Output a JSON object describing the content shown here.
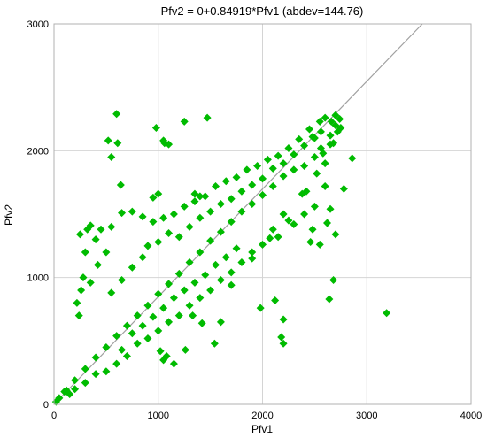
{
  "chart_data": {
    "type": "scatter",
    "title": "Pfv2 = 0+0.84919*Pfv1 (abdev=144.76)",
    "xlabel": "Pfv1",
    "ylabel": "Pfv2",
    "xlim": [
      0,
      4000
    ],
    "ylim": [
      0,
      3000
    ],
    "xticks": [
      "0",
      "1000",
      "2000",
      "3000",
      "4000"
    ],
    "yticks": [
      "0",
      "1000",
      "2000",
      "3000"
    ],
    "grid": true,
    "fit_line": {
      "intercept": 0,
      "slope": 0.84919,
      "color": "#a0a0a0"
    },
    "marker": {
      "shape": "diamond",
      "color": "#00bb00"
    },
    "series": [
      {
        "values": [
          [
            600,
            2290
          ],
          [
            520,
            2080
          ],
          [
            610,
            2060
          ],
          [
            550,
            1950
          ],
          [
            640,
            1730
          ],
          [
            980,
            2180
          ],
          [
            1060,
            2060
          ],
          [
            1470,
            2260
          ],
          [
            1100,
            2050
          ],
          [
            1050,
            2080
          ],
          [
            1250,
            2230
          ],
          [
            1000,
            1660
          ],
          [
            950,
            1630
          ],
          [
            1350,
            1660
          ],
          [
            1400,
            1640
          ],
          [
            2680,
            980
          ],
          [
            2780,
            1700
          ],
          [
            2640,
            830
          ],
          [
            3190,
            720
          ],
          [
            2860,
            1940
          ],
          [
            2700,
            1340
          ],
          [
            2460,
            1280
          ],
          [
            2620,
            1430
          ],
          [
            2120,
            820
          ],
          [
            2200,
            670
          ],
          [
            2180,
            530
          ],
          [
            2200,
            480
          ],
          [
            1980,
            760
          ],
          [
            1600,
            650
          ],
          [
            1540,
            480
          ],
          [
            1080,
            380
          ],
          [
            1050,
            350
          ],
          [
            1020,
            420
          ],
          [
            1150,
            320
          ],
          [
            1420,
            640
          ],
          [
            1260,
            430
          ],
          [
            1330,
            700
          ],
          [
            1700,
            940
          ],
          [
            1900,
            1150
          ],
          [
            2070,
            1310
          ],
          [
            2250,
            1450
          ],
          [
            2420,
            1680
          ],
          [
            2150,
            1320
          ],
          [
            2380,
            1660
          ],
          [
            2520,
            1820
          ],
          [
            2600,
            1900
          ],
          [
            2680,
            2060
          ],
          [
            2720,
            2150
          ],
          [
            2740,
            2250
          ],
          [
            2700,
            2200
          ],
          [
            2650,
            2120
          ],
          [
            2560,
            2020
          ],
          [
            2500,
            1950
          ],
          [
            2400,
            1880
          ],
          [
            2300,
            1850
          ],
          [
            2200,
            1800
          ],
          [
            2100,
            1720
          ],
          [
            2000,
            1650
          ],
          [
            1900,
            1580
          ],
          [
            1800,
            1520
          ],
          [
            1700,
            1440
          ],
          [
            1600,
            1360
          ],
          [
            1500,
            1290
          ],
          [
            1400,
            1200
          ],
          [
            1300,
            1120
          ],
          [
            1200,
            1030
          ],
          [
            1100,
            950
          ],
          [
            1000,
            870
          ],
          [
            900,
            780
          ],
          [
            800,
            700
          ],
          [
            700,
            620
          ],
          [
            600,
            540
          ],
          [
            500,
            450
          ],
          [
            400,
            370
          ],
          [
            300,
            280
          ],
          [
            200,
            190
          ],
          [
            100,
            100
          ],
          [
            50,
            50
          ],
          [
            20,
            20
          ],
          [
            2600,
            2260
          ],
          [
            2550,
            2230
          ],
          [
            2450,
            2170
          ],
          [
            2350,
            2090
          ],
          [
            2250,
            2020
          ],
          [
            2150,
            1960
          ],
          [
            2050,
            1930
          ],
          [
            1950,
            1880
          ],
          [
            1850,
            1850
          ],
          [
            1750,
            1790
          ],
          [
            1650,
            1760
          ],
          [
            1550,
            1720
          ],
          [
            1450,
            1640
          ],
          [
            1350,
            1600
          ],
          [
            1250,
            1560
          ],
          [
            1150,
            1500
          ],
          [
            1050,
            1470
          ],
          [
            950,
            1440
          ],
          [
            850,
            1480
          ],
          [
            750,
            1520
          ],
          [
            650,
            1510
          ],
          [
            550,
            1400
          ],
          [
            450,
            1380
          ],
          [
            350,
            1410
          ],
          [
            250,
            1340
          ],
          [
            300,
            1200
          ],
          [
            280,
            1000
          ],
          [
            260,
            900
          ],
          [
            220,
            800
          ],
          [
            240,
            700
          ],
          [
            350,
            960
          ],
          [
            420,
            1100
          ],
          [
            500,
            1200
          ],
          [
            400,
            1300
          ],
          [
            320,
            1380
          ],
          [
            550,
            880
          ],
          [
            650,
            980
          ],
          [
            750,
            1080
          ],
          [
            850,
            1160
          ],
          [
            900,
            1250
          ],
          [
            1000,
            1280
          ],
          [
            1100,
            1350
          ],
          [
            1200,
            1320
          ],
          [
            1300,
            1400
          ],
          [
            1400,
            1470
          ],
          [
            1500,
            1520
          ],
          [
            1600,
            1580
          ],
          [
            1700,
            1620
          ],
          [
            1800,
            1680
          ],
          [
            1900,
            1730
          ],
          [
            2000,
            1780
          ],
          [
            2100,
            1860
          ],
          [
            2200,
            1900
          ],
          [
            2300,
            1970
          ],
          [
            2400,
            2040
          ],
          [
            2500,
            2100
          ],
          [
            2700,
            2280
          ],
          [
            2660,
            2230
          ],
          [
            2560,
            2150
          ],
          [
            2480,
            2110
          ],
          [
            800,
            480
          ],
          [
            900,
            520
          ],
          [
            1000,
            580
          ],
          [
            1100,
            650
          ],
          [
            1200,
            700
          ],
          [
            1300,
            780
          ],
          [
            1400,
            840
          ],
          [
            1500,
            900
          ],
          [
            1600,
            980
          ],
          [
            1700,
            1040
          ],
          [
            1800,
            1120
          ],
          [
            1900,
            1200
          ],
          [
            2000,
            1260
          ],
          [
            2100,
            1380
          ],
          [
            2200,
            1500
          ],
          [
            700,
            380
          ],
          [
            600,
            320
          ],
          [
            500,
            260
          ],
          [
            650,
            430
          ],
          [
            750,
            560
          ],
          [
            850,
            620
          ],
          [
            950,
            690
          ],
          [
            1050,
            760
          ],
          [
            1150,
            840
          ],
          [
            1250,
            900
          ],
          [
            1350,
            960
          ],
          [
            1450,
            1020
          ],
          [
            1550,
            1100
          ],
          [
            1650,
            1160
          ],
          [
            1750,
            1230
          ],
          [
            400,
            240
          ],
          [
            300,
            170
          ],
          [
            200,
            120
          ],
          [
            150,
            80
          ],
          [
            120,
            110
          ],
          [
            2750,
            2180
          ],
          [
            2650,
            2050
          ],
          [
            2580,
            1980
          ],
          [
            2600,
            1720
          ],
          [
            2500,
            1560
          ],
          [
            2400,
            1500
          ],
          [
            2300,
            1420
          ],
          [
            2550,
            1260
          ],
          [
            2650,
            1540
          ],
          [
            2480,
            1380
          ]
        ]
      }
    ]
  }
}
